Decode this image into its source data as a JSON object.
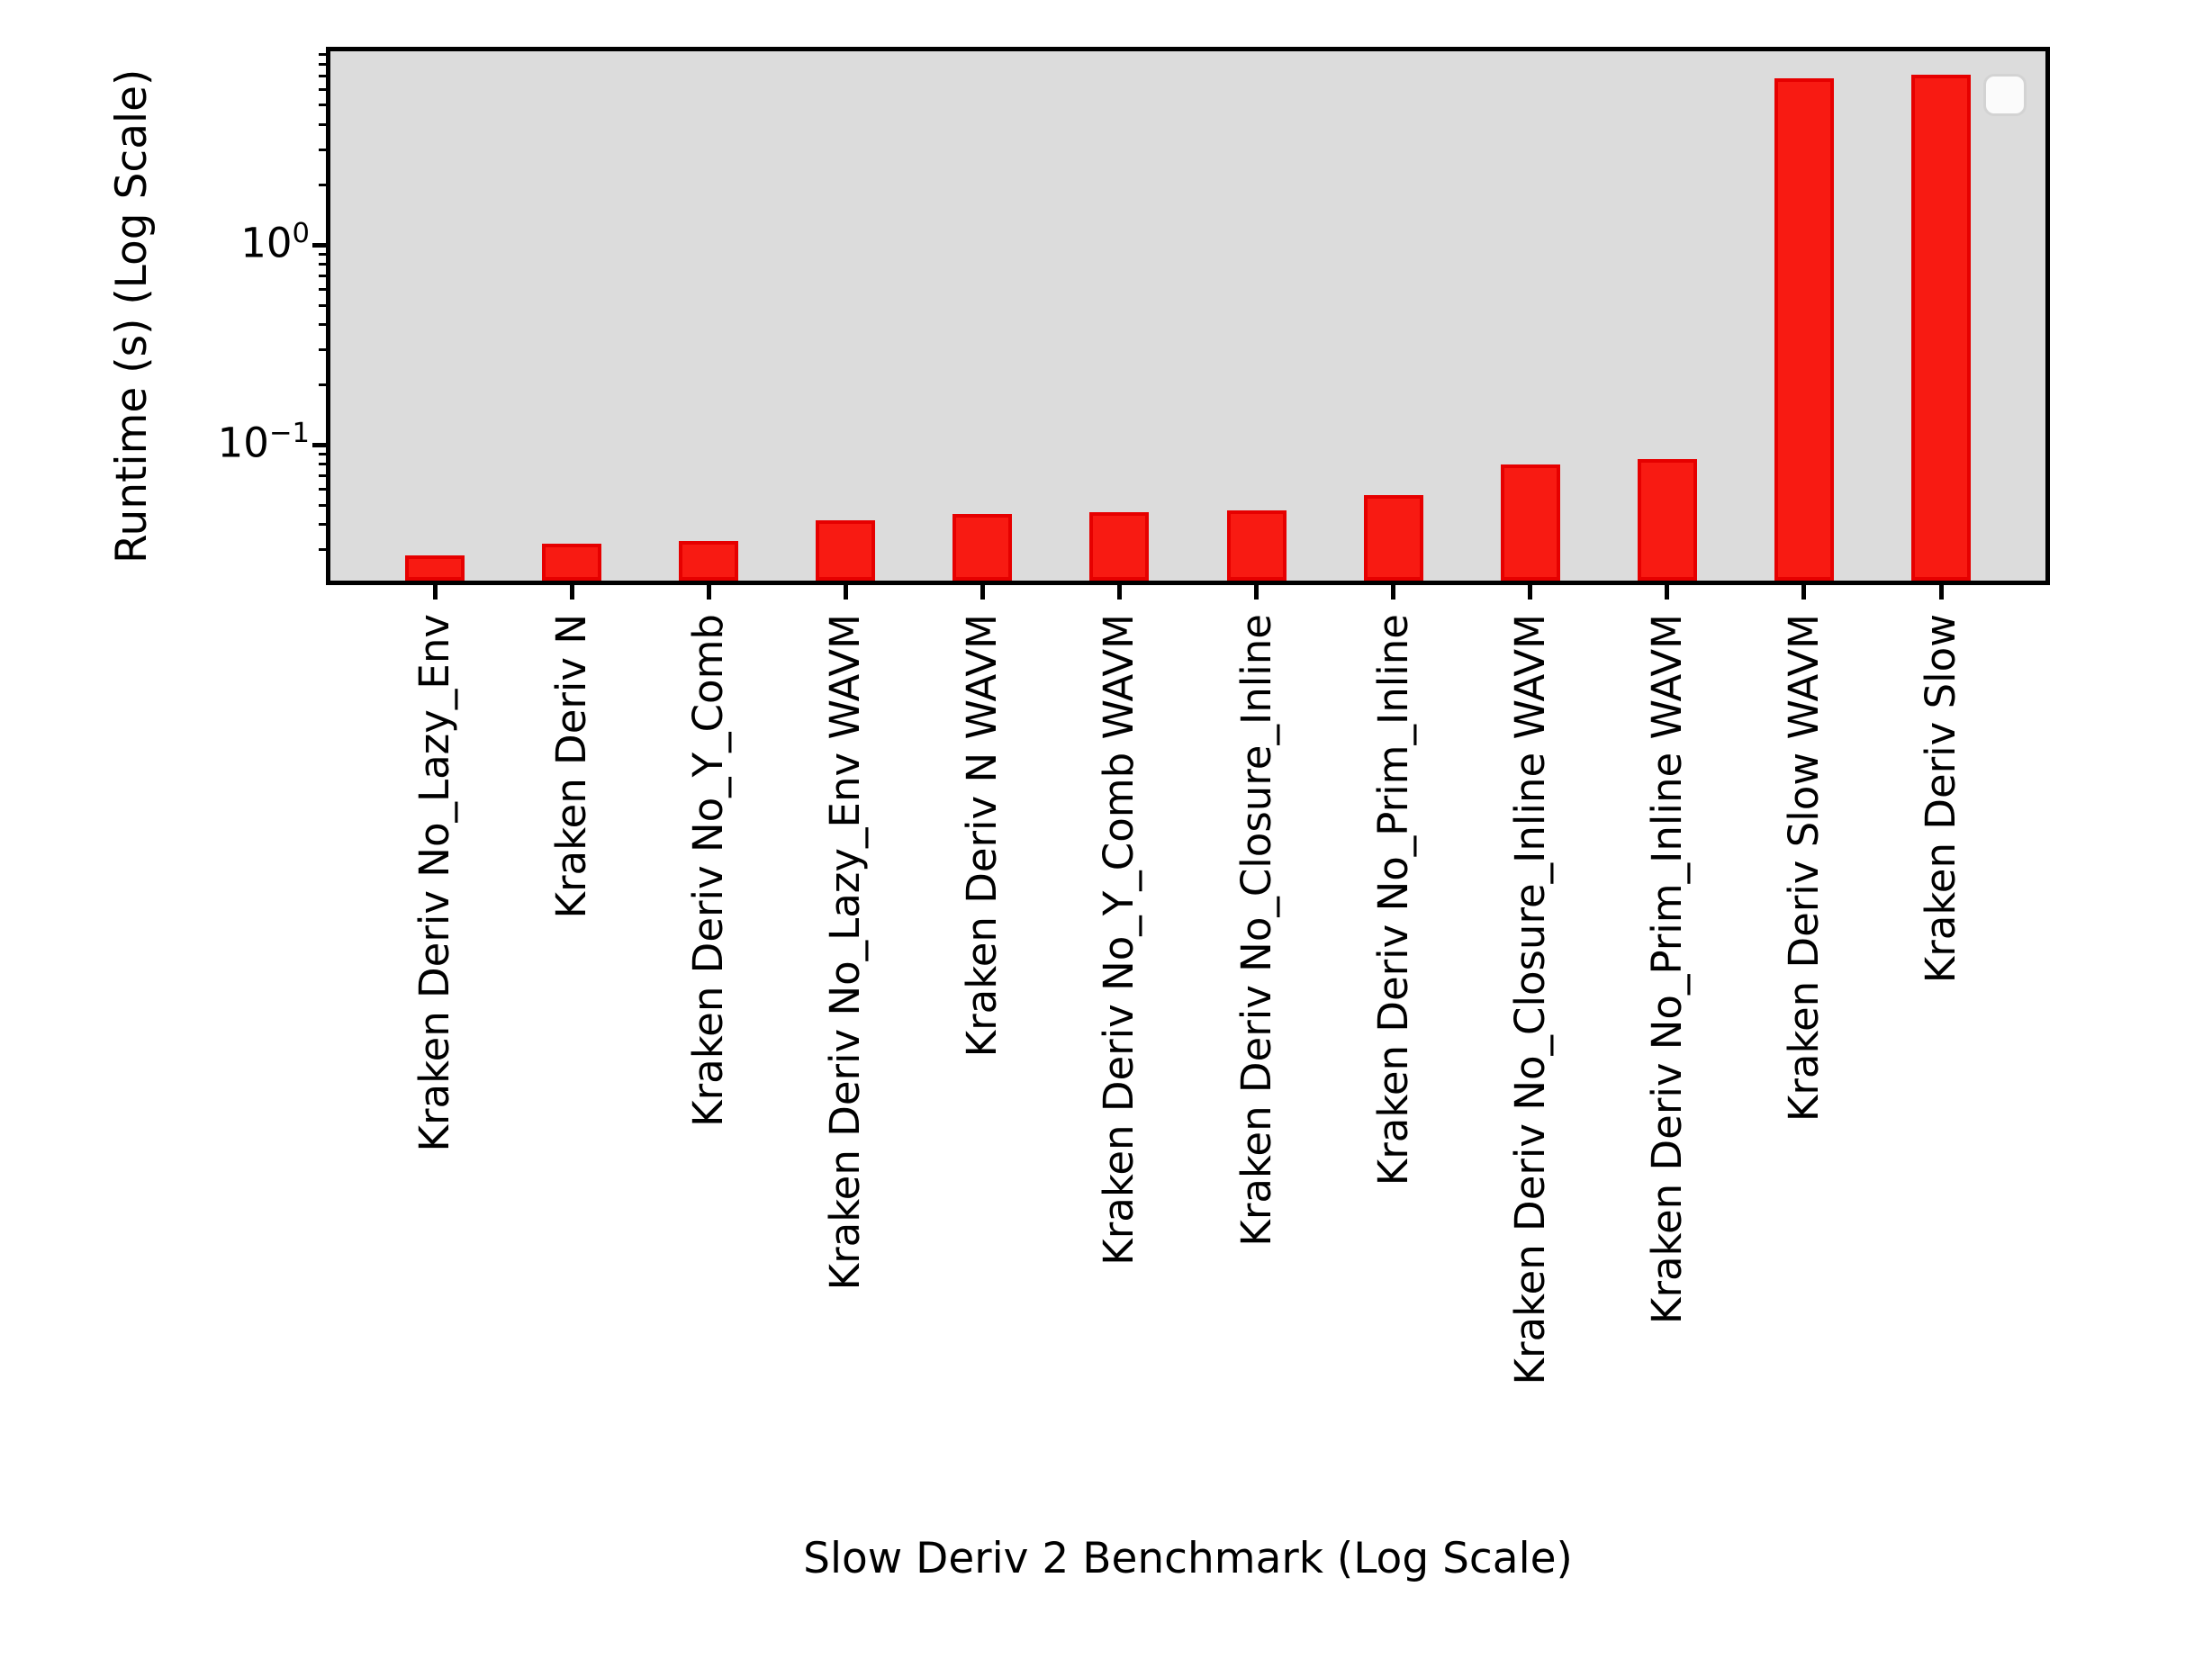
{
  "figure": {
    "background": "#ffffff",
    "plot_background": "#dcdcdc",
    "spine_color": "#000000"
  },
  "legend": {
    "visible": true,
    "entries": []
  },
  "chart_data": {
    "type": "bar",
    "title": "",
    "xlabel": "Slow Deriv 2 Benchmark (Log Scale)",
    "ylabel": "Runtime (s) (Log Scale)",
    "yscale": "log",
    "ylim": [
      0.021,
      9.3
    ],
    "grid": false,
    "legend_position": "upper-right-empty",
    "bar_color": "#f81a12",
    "bar_edge_color": "#e60000",
    "yticks": [
      {
        "value": 1,
        "base": "10",
        "exp": "0"
      },
      {
        "value": 0.1,
        "base": "10",
        "exp": "−1"
      }
    ],
    "categories": [
      "Kraken Deriv No_Lazy_Env",
      "Kraken Deriv N",
      "Kraken Deriv No_Y_Comb",
      "Kraken Deriv No_Lazy_Env WAVM",
      "Kraken Deriv N WAVM",
      "Kraken Deriv No_Y_Comb WAVM",
      "Kraken Deriv No_Closure_Inline",
      "Kraken Deriv No_Prim_Inline",
      "Kraken Deriv No_Closure_Inline WAVM",
      "Kraken Deriv No_Prim_Inline WAVM",
      "Kraken Deriv Slow WAVM",
      "Kraken Deriv Slow"
    ],
    "values": [
      0.028,
      0.032,
      0.033,
      0.042,
      0.045,
      0.046,
      0.047,
      0.056,
      0.08,
      0.085,
      6.8,
      7.1
    ]
  }
}
